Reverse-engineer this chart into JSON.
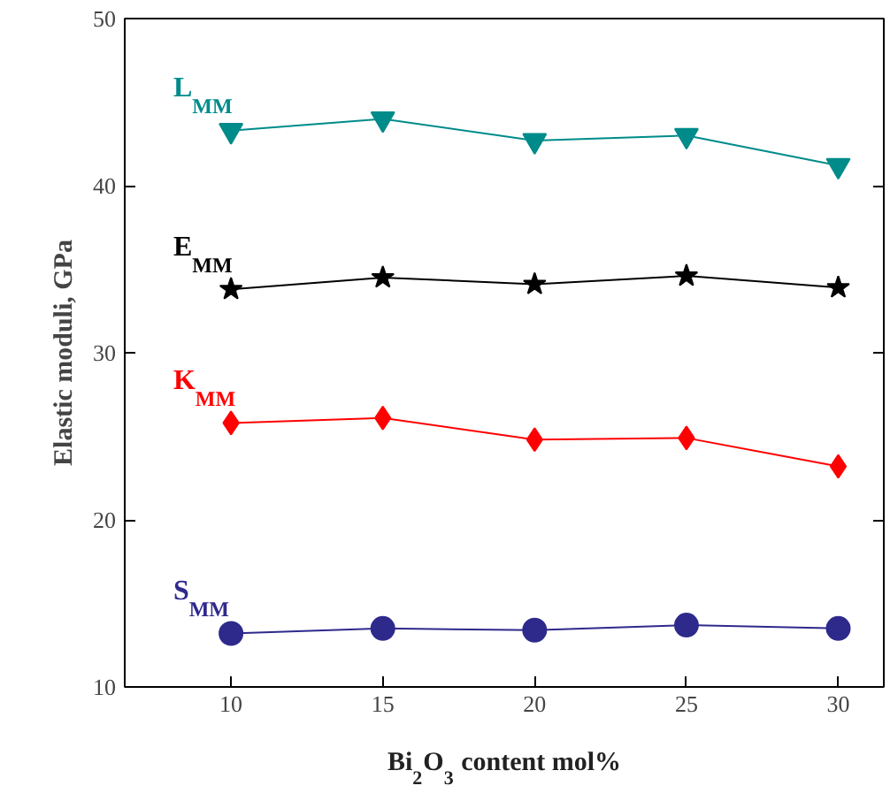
{
  "chart_data": {
    "type": "line",
    "xlabel": "Bi$_{2}$O$_{3}$ content mol%",
    "ylabel": "Elastic moduli, GPa",
    "x": [
      10,
      15,
      20,
      25,
      30
    ],
    "xlim": [
      6.5,
      31.5
    ],
    "xticks": [
      10,
      15,
      20,
      25,
      30
    ],
    "ylim": [
      10,
      50
    ],
    "yticks": [
      10,
      20,
      30,
      40,
      50
    ],
    "grid": false,
    "legend": false,
    "series": [
      {
        "name": "L$_{MM}$",
        "color": "#008b8b",
        "marker": "triangle",
        "values": [
          43.3,
          44.0,
          42.7,
          43.0,
          41.2
        ]
      },
      {
        "name": "E$_{MM}$",
        "color": "#000000",
        "marker": "star",
        "values": [
          33.8,
          34.5,
          34.1,
          34.6,
          33.9
        ]
      },
      {
        "name": "K$_{MM}$",
        "color": "#ff0000",
        "marker": "diamond",
        "values": [
          25.8,
          26.1,
          24.8,
          24.9,
          23.2
        ]
      },
      {
        "name": "S$_{MM}$",
        "color": "#2e2a8c",
        "marker": "circle",
        "values": [
          13.2,
          13.5,
          13.4,
          13.7,
          13.5
        ]
      }
    ]
  }
}
